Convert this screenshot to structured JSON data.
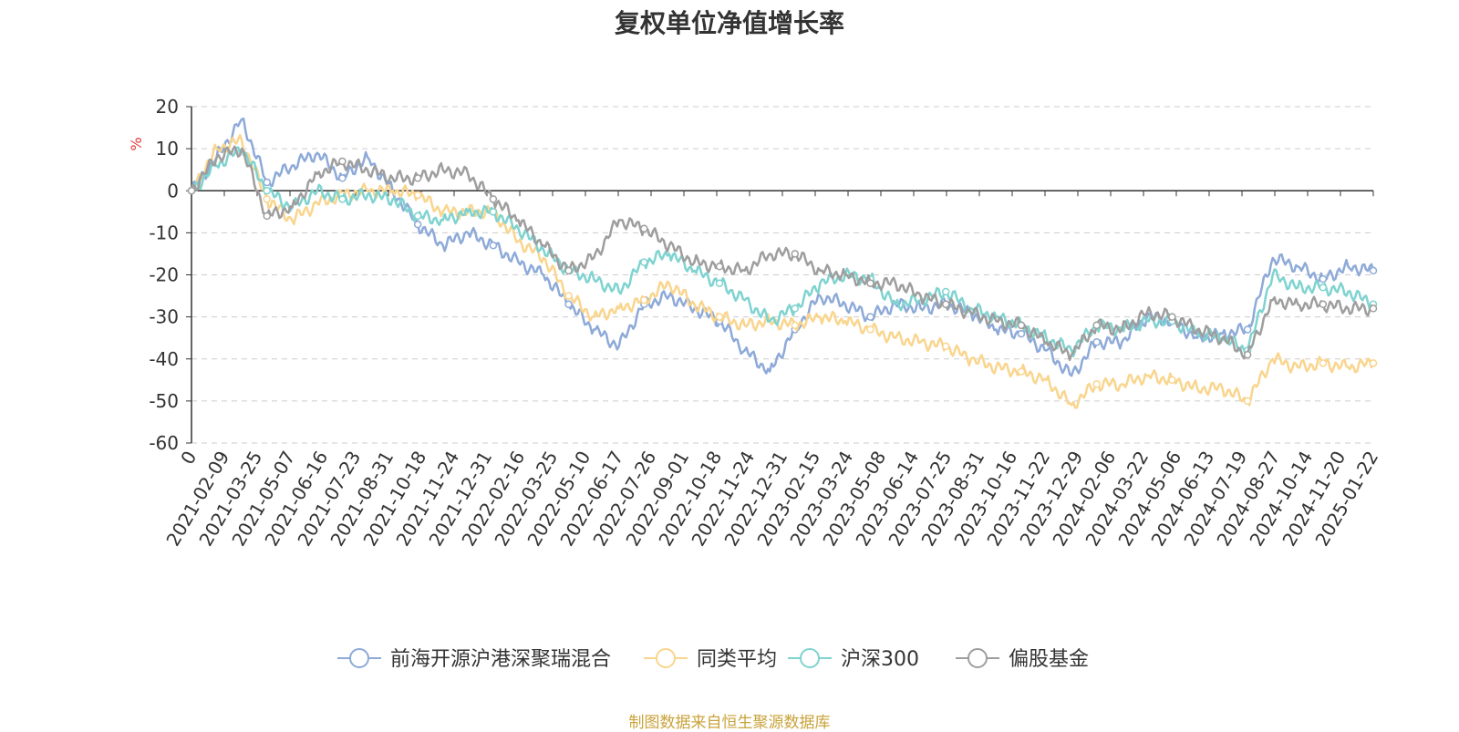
{
  "chart_data": {
    "type": "line",
    "title": "复权单位净值增长率",
    "ylabel": "%",
    "xlabel": "",
    "ylim": [
      -60,
      20
    ],
    "yticks": [
      20,
      10,
      0,
      -10,
      -20,
      -30,
      -40,
      -50,
      -60
    ],
    "grid": true,
    "legend": "bottom",
    "x_tick_labels": [
      "0",
      "2021-02-09",
      "2021-03-25",
      "2021-05-07",
      "2021-06-16",
      "2021-07-23",
      "2021-08-31",
      "2021-10-18",
      "2021-11-24",
      "2021-12-31",
      "2022-02-16",
      "2022-03-25",
      "2022-05-10",
      "2022-06-17",
      "2022-07-26",
      "2022-09-01",
      "2022-10-18",
      "2022-11-24",
      "2022-12-31",
      "2023-02-15",
      "2023-03-24",
      "2023-05-08",
      "2023-06-14",
      "2023-07-25",
      "2023-08-31",
      "2023-10-16",
      "2023-11-22",
      "2023-12-29",
      "2024-02-06",
      "2024-03-22",
      "2024-05-06",
      "2024-06-13",
      "2024-07-19",
      "2024-08-27",
      "2024-10-14",
      "2024-11-20",
      "2025-01-22"
    ],
    "series": [
      {
        "name": "前海开源沪港深聚瑞混合",
        "color": "#8eaad8",
        "values": [
          0,
          8,
          17,
          2,
          6,
          9,
          3,
          8,
          0,
          -8,
          -13,
          -10,
          -13,
          -17,
          -20,
          -27,
          -33,
          -37,
          -27,
          -25,
          -28,
          -31,
          -38,
          -43,
          -33,
          -25,
          -27,
          -30,
          -27,
          -28,
          -27,
          -29,
          -33,
          -34,
          -38,
          -44,
          -36,
          -36,
          -30,
          -31,
          -35,
          -34,
          -33,
          -16,
          -18,
          -21,
          -18,
          -19
        ]
      },
      {
        "name": "同类平均",
        "color": "#f9d58e",
        "values": [
          0,
          10,
          12,
          -2,
          -7,
          -3,
          -1,
          0,
          0,
          -1,
          -5,
          -5,
          -5,
          -12,
          -16,
          -25,
          -30,
          -28,
          -26,
          -22,
          -27,
          -30,
          -32,
          -31,
          -32,
          -30,
          -31,
          -33,
          -35,
          -36,
          -37,
          -40,
          -42,
          -43,
          -45,
          -51,
          -46,
          -46,
          -44,
          -45,
          -47,
          -47,
          -50,
          -40,
          -42,
          -41,
          -42,
          -41
        ]
      },
      {
        "name": "沪深300",
        "color": "#7fd3d0",
        "values": [
          0,
          6,
          10,
          0,
          -4,
          0,
          -2,
          -1,
          -2,
          -6,
          -7,
          -5,
          -5,
          -9,
          -14,
          -19,
          -21,
          -24,
          -17,
          -15,
          -19,
          -22,
          -26,
          -31,
          -28,
          -22,
          -20,
          -21,
          -27,
          -26,
          -24,
          -28,
          -30,
          -32,
          -35,
          -38,
          -32,
          -33,
          -31,
          -31,
          -34,
          -35,
          -38,
          -20,
          -23,
          -23,
          -24,
          -27
        ]
      },
      {
        "name": "偏股基金",
        "color": "#9e9e9e",
        "values": [
          0,
          8,
          10,
          -6,
          -4,
          4,
          7,
          5,
          3,
          3,
          5,
          4,
          -2,
          -7,
          -13,
          -19,
          -16,
          -7,
          -9,
          -13,
          -17,
          -18,
          -19,
          -15,
          -15,
          -19,
          -20,
          -22,
          -22,
          -25,
          -27,
          -29,
          -31,
          -32,
          -36,
          -39,
          -32,
          -33,
          -29,
          -30,
          -33,
          -35,
          -39,
          -26,
          -27,
          -27,
          -28,
          -28
        ]
      }
    ]
  },
  "footer": {
    "source": "制图数据来自恒生聚源数据库"
  }
}
